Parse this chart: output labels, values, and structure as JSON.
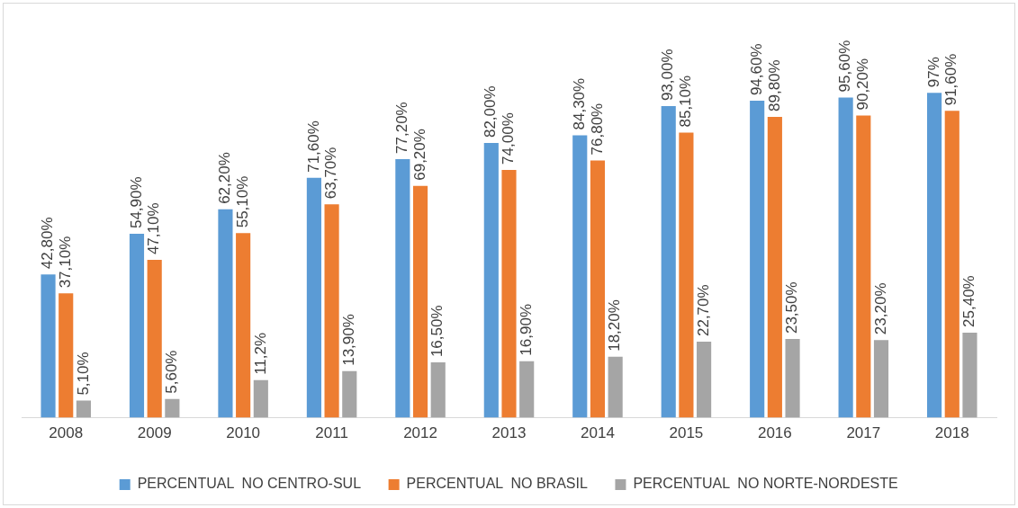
{
  "chart_data": {
    "type": "bar",
    "categories": [
      "2008",
      "2009",
      "2010",
      "2011",
      "2012",
      "2013",
      "2014",
      "2015",
      "2016",
      "2017",
      "2018"
    ],
    "series": [
      {
        "name": "PERCENTUAL  NO CENTRO-SUL",
        "color": "#5b9bd5",
        "values": [
          42.8,
          54.9,
          62.2,
          71.6,
          77.2,
          82.0,
          84.3,
          93.0,
          94.6,
          95.6,
          97
        ],
        "value_labels": [
          "42,80%",
          "54,90%",
          "62,20%",
          "71,60%",
          "77,20%",
          "82,00%",
          "84,30%",
          "93,00%",
          "94,60%",
          "95,60%",
          "97%"
        ]
      },
      {
        "name": "PERCENTUAL  NO BRASIL",
        "color": "#ed7d31",
        "values": [
          37.1,
          47.1,
          55.1,
          63.7,
          69.2,
          74.0,
          76.8,
          85.1,
          89.8,
          90.2,
          91.6
        ],
        "value_labels": [
          "37,10%",
          "47,10%",
          "55,10%",
          "63,70%",
          "69,20%",
          "74,00%",
          "76,80%",
          "85,10%",
          "89,80%",
          "90,20%",
          "91,60%"
        ]
      },
      {
        "name": "PERCENTUAL  NO NORTE-NORDESTE",
        "color": "#a5a5a5",
        "values": [
          5.1,
          5.6,
          11.2,
          13.9,
          16.5,
          16.9,
          18.2,
          22.7,
          23.5,
          23.2,
          25.4
        ],
        "value_labels": [
          "5,10%",
          "5,60%",
          "11,2%",
          "13,90%",
          "16,50%",
          "16,90%",
          "18,20%",
          "22,70%",
          "23,50%",
          "23,20%",
          "25,40%"
        ]
      }
    ],
    "legend": "bottom",
    "grid": false
  }
}
